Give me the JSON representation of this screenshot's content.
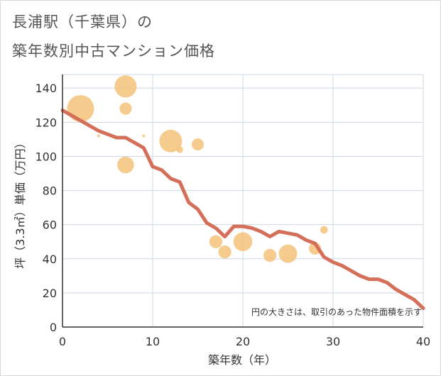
{
  "title_line1": "長浦駅（千葉県）の",
  "title_line2": "築年数別中古マンション価格",
  "chart_data": {
    "type": "scatter",
    "xlabel": "築年数（年）",
    "ylabel": "坪（3.3㎡）単価（万円）",
    "xlim": [
      0,
      40
    ],
    "ylim": [
      0,
      148
    ],
    "xticks": [
      "0",
      "10",
      "20",
      "30",
      "40"
    ],
    "yticks": [
      "0",
      "20",
      "40",
      "60",
      "80",
      "100",
      "120",
      "140"
    ],
    "grid": true,
    "note": "円の大きさは、取引のあった物件面積を示す",
    "colors": {
      "bubble": "#f5c27a",
      "line": "#d4705a",
      "grid": "#cfd8e3",
      "axis": "#333333"
    },
    "bubbles": [
      {
        "x": 2,
        "y": 128,
        "size": 1.0
      },
      {
        "x": 4,
        "y": 112,
        "size": 0.1
      },
      {
        "x": 7,
        "y": 141,
        "size": 0.82
      },
      {
        "x": 7,
        "y": 128,
        "size": 0.45
      },
      {
        "x": 7,
        "y": 95,
        "size": 0.62
      },
      {
        "x": 9,
        "y": 112,
        "size": 0.1
      },
      {
        "x": 12,
        "y": 109,
        "size": 0.84
      },
      {
        "x": 13,
        "y": 104,
        "size": 0.25
      },
      {
        "x": 15,
        "y": 107,
        "size": 0.45
      },
      {
        "x": 17,
        "y": 50,
        "size": 0.48
      },
      {
        "x": 18,
        "y": 44,
        "size": 0.48
      },
      {
        "x": 20,
        "y": 50,
        "size": 0.7
      },
      {
        "x": 23,
        "y": 42,
        "size": 0.48
      },
      {
        "x": 25,
        "y": 43,
        "size": 0.68
      },
      {
        "x": 28,
        "y": 46,
        "size": 0.45
      },
      {
        "x": 29,
        "y": 57,
        "size": 0.28
      }
    ],
    "trend": {
      "x": [
        0,
        1,
        2,
        3,
        4,
        5,
        6,
        7,
        8,
        9,
        10,
        11,
        12,
        13,
        14,
        15,
        16,
        17,
        18,
        19,
        20,
        21,
        22,
        23,
        24,
        25,
        26,
        27,
        28,
        29,
        30,
        31,
        32,
        33,
        34,
        35,
        36,
        37,
        38,
        39,
        40
      ],
      "y": [
        127,
        124,
        121,
        118,
        115,
        113,
        111,
        111,
        108,
        105,
        94,
        92,
        87,
        85,
        73,
        69,
        61,
        58,
        53,
        59,
        59,
        58,
        56,
        53,
        56,
        55,
        54,
        51,
        49,
        41,
        38,
        36,
        33,
        30,
        28,
        28,
        26,
        22,
        19,
        16,
        11
      ]
    }
  }
}
